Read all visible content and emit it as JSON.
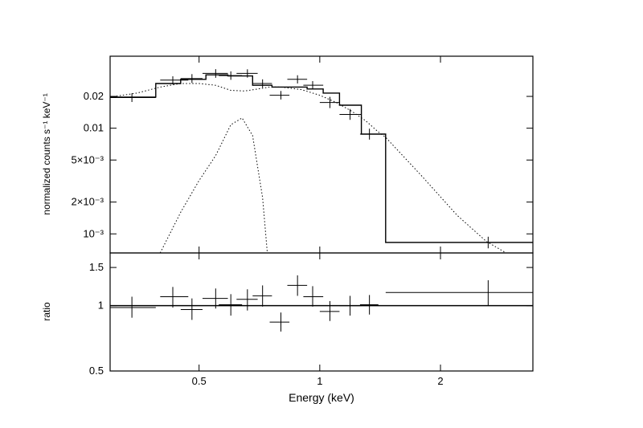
{
  "chart_data": [
    {
      "panel": "spectrum",
      "type": "scatter",
      "ylabel": "normalized counts s⁻¹ keV⁻¹",
      "xscale": "log",
      "yscale": "log",
      "xlim": [
        0.3,
        3.4
      ],
      "ylim": [
        0.00066,
        0.048
      ],
      "yticks": [
        {
          "value": 0.02,
          "label": "0.02"
        },
        {
          "value": 0.01,
          "label": "0.01"
        },
        {
          "value": 0.005,
          "label": "5×10⁻³"
        },
        {
          "value": 0.002,
          "label": "2×10⁻³"
        },
        {
          "value": 0.001,
          "label": "10⁻³"
        }
      ],
      "data_points": [
        {
          "x": 0.34,
          "xerr": [
            0.3,
            0.39
          ],
          "y": 0.0195,
          "yerr": [
            0.0177,
            0.0214
          ]
        },
        {
          "x": 0.43,
          "xerr": [
            0.4,
            0.47
          ],
          "y": 0.0285,
          "yerr": [
            0.026,
            0.031
          ]
        },
        {
          "x": 0.48,
          "xerr": [
            0.45,
            0.51
          ],
          "y": 0.0295,
          "yerr": [
            0.0268,
            0.0325
          ]
        },
        {
          "x": 0.55,
          "xerr": [
            0.51,
            0.59
          ],
          "y": 0.033,
          "yerr": [
            0.03,
            0.0362
          ]
        },
        {
          "x": 0.6,
          "xerr": [
            0.56,
            0.64
          ],
          "y": 0.0315,
          "yerr": [
            0.0287,
            0.0345
          ]
        },
        {
          "x": 0.66,
          "xerr": [
            0.62,
            0.7
          ],
          "y": 0.033,
          "yerr": [
            0.0301,
            0.0361
          ]
        },
        {
          "x": 0.72,
          "xerr": [
            0.68,
            0.76
          ],
          "y": 0.0265,
          "yerr": [
            0.0242,
            0.029
          ]
        },
        {
          "x": 0.8,
          "xerr": [
            0.75,
            0.84
          ],
          "y": 0.0205,
          "yerr": [
            0.0187,
            0.0225
          ]
        },
        {
          "x": 0.88,
          "xerr": [
            0.83,
            0.93
          ],
          "y": 0.029,
          "yerr": [
            0.0265,
            0.0317
          ]
        },
        {
          "x": 0.96,
          "xerr": [
            0.91,
            1.02
          ],
          "y": 0.0255,
          "yerr": [
            0.0233,
            0.0279
          ]
        },
        {
          "x": 1.06,
          "xerr": [
            1.0,
            1.12
          ],
          "y": 0.0175,
          "yerr": [
            0.0155,
            0.0198
          ]
        },
        {
          "x": 1.19,
          "xerr": [
            1.12,
            1.27
          ],
          "y": 0.0135,
          "yerr": [
            0.012,
            0.0152
          ]
        },
        {
          "x": 1.33,
          "xerr": [
            1.26,
            1.4
          ],
          "y": 0.0088,
          "yerr": [
            0.0078,
            0.0099
          ]
        },
        {
          "x": 2.63,
          "xerr": [
            1.46,
            3.4
          ],
          "y": 0.00083,
          "yerr": [
            0.00073,
            0.00094
          ]
        }
      ],
      "model_step": [
        {
          "x0": 0.3,
          "x1": 0.39,
          "y": 0.0197
        },
        {
          "x0": 0.39,
          "x1": 0.45,
          "y": 0.0265
        },
        {
          "x0": 0.45,
          "x1": 0.52,
          "y": 0.029
        },
        {
          "x0": 0.52,
          "x1": 0.59,
          "y": 0.032
        },
        {
          "x0": 0.59,
          "x1": 0.68,
          "y": 0.0312
        },
        {
          "x0": 0.68,
          "x1": 0.76,
          "y": 0.0255
        },
        {
          "x0": 0.76,
          "x1": 0.84,
          "y": 0.0245
        },
        {
          "x0": 0.84,
          "x1": 0.93,
          "y": 0.0245
        },
        {
          "x0": 0.93,
          "x1": 1.02,
          "y": 0.0235
        },
        {
          "x0": 1.02,
          "x1": 1.12,
          "y": 0.0215
        },
        {
          "x0": 1.12,
          "x1": 1.27,
          "y": 0.0165
        },
        {
          "x0": 1.27,
          "x1": 1.46,
          "y": 0.0088
        },
        {
          "x0": 1.46,
          "x1": 3.4,
          "y": 0.00083
        }
      ],
      "component_broad": [
        [
          0.3,
          0.0197
        ],
        [
          0.35,
          0.0215
        ],
        [
          0.4,
          0.0245
        ],
        [
          0.45,
          0.0265
        ],
        [
          0.5,
          0.0265
        ],
        [
          0.55,
          0.0255
        ],
        [
          0.6,
          0.0228
        ],
        [
          0.65,
          0.0225
        ],
        [
          0.7,
          0.0235
        ],
        [
          0.75,
          0.0245
        ],
        [
          0.8,
          0.0245
        ],
        [
          0.9,
          0.0232
        ],
        [
          1.0,
          0.0205
        ],
        [
          1.1,
          0.0175
        ],
        [
          1.2,
          0.0145
        ],
        [
          1.3,
          0.0118
        ],
        [
          1.4,
          0.0092
        ],
        [
          1.46,
          0.0082
        ],
        [
          1.8,
          0.0035
        ],
        [
          2.2,
          0.0015
        ],
        [
          2.6,
          0.00085
        ],
        [
          3.0,
          0.00062
        ],
        [
          3.4,
          0.00048
        ]
      ],
      "component_line": [
        [
          0.4,
          0.00066
        ],
        [
          0.45,
          0.0016
        ],
        [
          0.5,
          0.0032
        ],
        [
          0.55,
          0.0055
        ],
        [
          0.6,
          0.0108
        ],
        [
          0.64,
          0.0125
        ],
        [
          0.68,
          0.0085
        ],
        [
          0.72,
          0.0022
        ],
        [
          0.74,
          0.00066
        ]
      ]
    },
    {
      "panel": "ratio",
      "type": "scatter",
      "xlabel": "Energy (keV)",
      "ylabel": "ratio",
      "xscale": "log",
      "yscale": "log",
      "xlim": [
        0.3,
        3.4
      ],
      "ylim": [
        0.5,
        1.75
      ],
      "xticks": [
        {
          "value": 0.5,
          "label": "0.5"
        },
        {
          "value": 1,
          "label": "1"
        },
        {
          "value": 2,
          "label": "2"
        }
      ],
      "yticks": [
        {
          "value": 0.5,
          "label": "0.5"
        },
        {
          "value": 1,
          "label": "1"
        },
        {
          "value": 1.5,
          "label": "1.5"
        }
      ],
      "reference_line": 1,
      "data_points": [
        {
          "x": 0.34,
          "xerr": [
            0.3,
            0.39
          ],
          "y": 0.98,
          "yerr": [
            0.88,
            1.1
          ]
        },
        {
          "x": 0.43,
          "xerr": [
            0.4,
            0.47
          ],
          "y": 1.1,
          "yerr": [
            0.98,
            1.22
          ]
        },
        {
          "x": 0.48,
          "xerr": [
            0.45,
            0.51
          ],
          "y": 0.96,
          "yerr": [
            0.86,
            1.08
          ]
        },
        {
          "x": 0.55,
          "xerr": [
            0.51,
            0.59
          ],
          "y": 1.08,
          "yerr": [
            0.97,
            1.2
          ]
        },
        {
          "x": 0.6,
          "xerr": [
            0.56,
            0.64
          ],
          "y": 1.01,
          "yerr": [
            0.9,
            1.13
          ]
        },
        {
          "x": 0.66,
          "xerr": [
            0.62,
            0.7
          ],
          "y": 1.07,
          "yerr": [
            0.95,
            1.19
          ]
        },
        {
          "x": 0.72,
          "xerr": [
            0.68,
            0.76
          ],
          "y": 1.11,
          "yerr": [
            0.99,
            1.24
          ]
        },
        {
          "x": 0.8,
          "xerr": [
            0.75,
            0.84
          ],
          "y": 0.84,
          "yerr": [
            0.76,
            0.93
          ]
        },
        {
          "x": 0.88,
          "xerr": [
            0.83,
            0.93
          ],
          "y": 1.24,
          "yerr": [
            1.11,
            1.38
          ]
        },
        {
          "x": 0.96,
          "xerr": [
            0.91,
            1.02
          ],
          "y": 1.1,
          "yerr": [
            0.99,
            1.23
          ]
        },
        {
          "x": 1.06,
          "xerr": [
            1.0,
            1.12
          ],
          "y": 0.94,
          "yerr": [
            0.85,
            1.05
          ]
        },
        {
          "x": 1.19,
          "xerr": [
            1.12,
            1.27
          ],
          "y": 1.0,
          "yerr": [
            0.9,
            1.11
          ]
        },
        {
          "x": 1.33,
          "xerr": [
            1.26,
            1.4
          ],
          "y": 1.01,
          "yerr": [
            0.91,
            1.12
          ]
        },
        {
          "x": 2.63,
          "xerr": [
            1.46,
            3.4
          ],
          "y": 1.15,
          "yerr": [
            1.0,
            1.31
          ]
        }
      ]
    }
  ]
}
